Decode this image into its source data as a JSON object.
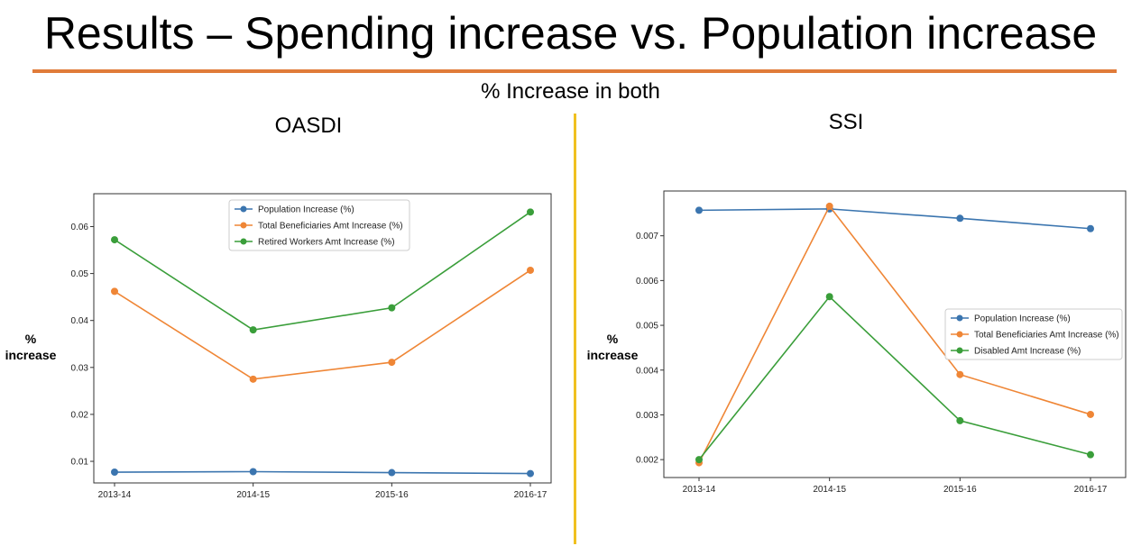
{
  "slide": {
    "title": "Results – Spending increase vs. Population increase",
    "subtitle": "% Increase in both",
    "accent_color": "#e07b39",
    "divider_color": "#f0c020"
  },
  "chart_data": [
    {
      "type": "line",
      "title": "OASDI",
      "xlabel": "",
      "ylabel": "% increase",
      "categories": [
        "2013-14",
        "2014-15",
        "2015-16",
        "2016-17"
      ],
      "ylim": [
        0.0054,
        0.067
      ],
      "yticks": [
        "0.01",
        "0.02",
        "0.03",
        "0.04",
        "0.05",
        "0.06"
      ],
      "grid": false,
      "legend": "top-center",
      "series": [
        {
          "name": "Population Increase (%)",
          "color": "#3b75af",
          "values": [
            0.0077,
            0.0078,
            0.0076,
            0.0074
          ]
        },
        {
          "name": "Total Beneficiaries Amt Increase (%)",
          "color": "#ef8636",
          "values": [
            0.0462,
            0.0275,
            0.0311,
            0.0507
          ]
        },
        {
          "name": "Retired Workers Amt Increase (%)",
          "color": "#3a9e3a",
          "values": [
            0.0572,
            0.038,
            0.0427,
            0.0631
          ]
        }
      ]
    },
    {
      "type": "line",
      "title": "SSI",
      "xlabel": "",
      "ylabel": "% increase",
      "categories": [
        "2013-14",
        "2014-15",
        "2015-16",
        "2016-17"
      ],
      "ylim": [
        0.0016,
        0.008
      ],
      "yticks": [
        "0.002",
        "0.003",
        "0.004",
        "0.005",
        "0.006",
        "0.007"
      ],
      "grid": false,
      "legend": "center-right",
      "series": [
        {
          "name": "Population Increase (%)",
          "color": "#3b75af",
          "values": [
            0.00757,
            0.0076,
            0.00739,
            0.00716
          ]
        },
        {
          "name": "Total Beneficiaries Amt Increase (%)",
          "color": "#ef8636",
          "values": [
            0.00193,
            0.00766,
            0.0039,
            0.00301
          ]
        },
        {
          "name": "Disabled Amt Increase (%)",
          "color": "#3a9e3a",
          "values": [
            0.002,
            0.00564,
            0.00287,
            0.00211
          ]
        }
      ]
    }
  ]
}
